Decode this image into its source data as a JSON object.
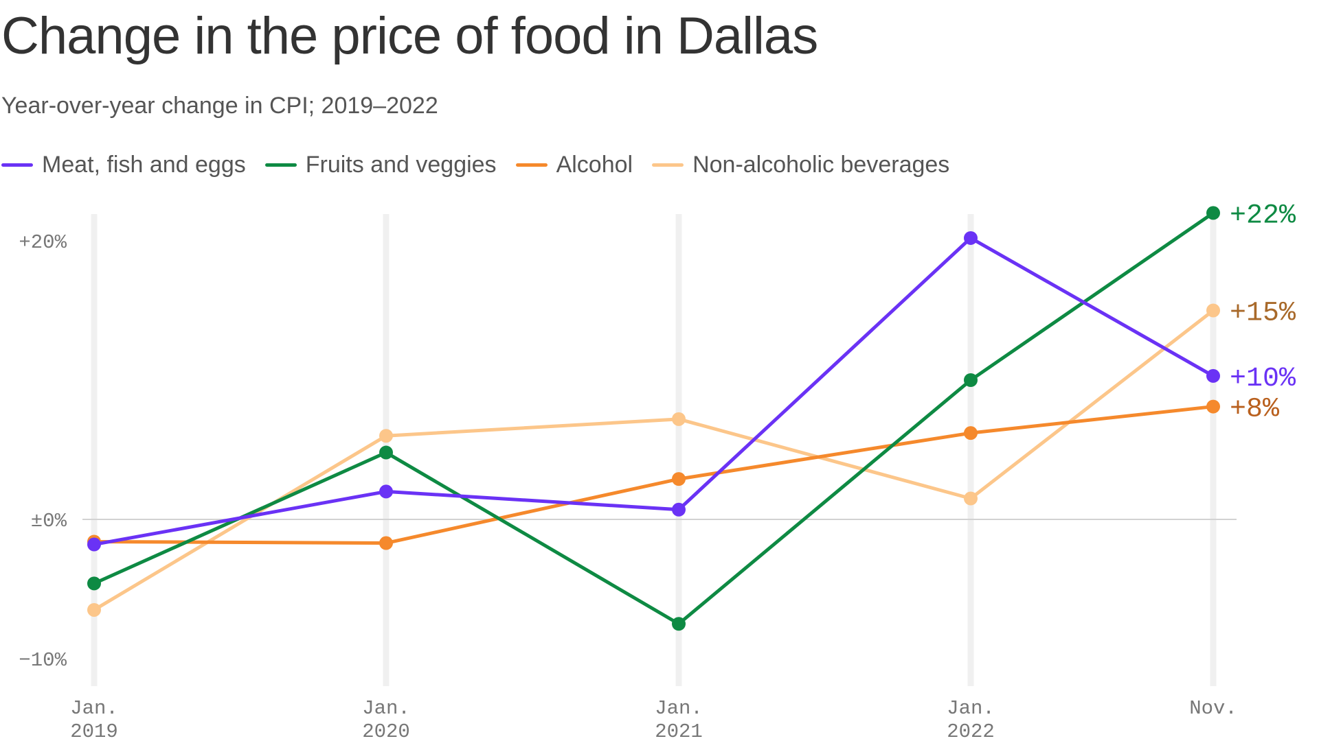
{
  "header": {
    "title": "Change in the price of food in Dallas",
    "subtitle": "Year-over-year change in CPI; 2019–2022"
  },
  "legend": {
    "items": [
      {
        "label": "Meat, fish and eggs",
        "color": "#6a32f5"
      },
      {
        "label": "Fruits and veggies",
        "color": "#0e8a43"
      },
      {
        "label": "Alcohol",
        "color": "#f5892c"
      },
      {
        "label": "Non-alcoholic beverages",
        "color": "#fcc68a"
      }
    ]
  },
  "chart_data": {
    "type": "line",
    "title": "Change in the price of food in Dallas",
    "subtitle": "Year-over-year change in CPI; 2019–2022",
    "x": [
      "Jan. 2019",
      "Jan. 2020",
      "Jan. 2021",
      "Jan. 2022",
      "Nov. 2022"
    ],
    "x_tick_labels": [
      [
        "Jan.",
        "2019"
      ],
      [
        "Jan.",
        "2020"
      ],
      [
        "Jan.",
        "2021"
      ],
      [
        "Jan.",
        "2022"
      ],
      [
        "Nov.",
        ""
      ]
    ],
    "ylim": [
      -12,
      23.5
    ],
    "y_ticks": [
      {
        "value": 20,
        "label": "+20%"
      },
      {
        "value": 0,
        "label": "±0%"
      },
      {
        "value": -10,
        "label": "−10%"
      }
    ],
    "grid": {
      "vertical": true,
      "zero_line": true
    },
    "series": [
      {
        "name": "Non-alcoholic beverages",
        "color": "#fcc68a",
        "values": [
          -6.5,
          6.0,
          7.2,
          1.5,
          15.0
        ],
        "end_label": "+15%",
        "end_label_color": "#a8692a"
      },
      {
        "name": "Alcohol",
        "color": "#f5892c",
        "values": [
          -1.6,
          -1.7,
          2.9,
          6.2,
          8.1
        ],
        "end_label": "+8%",
        "end_label_color": "#b9601e"
      },
      {
        "name": "Fruits and veggies",
        "color": "#0e8a43",
        "values": [
          -4.6,
          4.8,
          -7.5,
          10.0,
          22.0
        ],
        "end_label": "+22%",
        "end_label_color": "#0e8a43"
      },
      {
        "name": "Meat, fish and eggs",
        "color": "#6a32f5",
        "values": [
          -1.8,
          2.0,
          0.7,
          20.2,
          10.3
        ],
        "end_label": "+10%",
        "end_label_color": "#6a32f5"
      }
    ]
  }
}
